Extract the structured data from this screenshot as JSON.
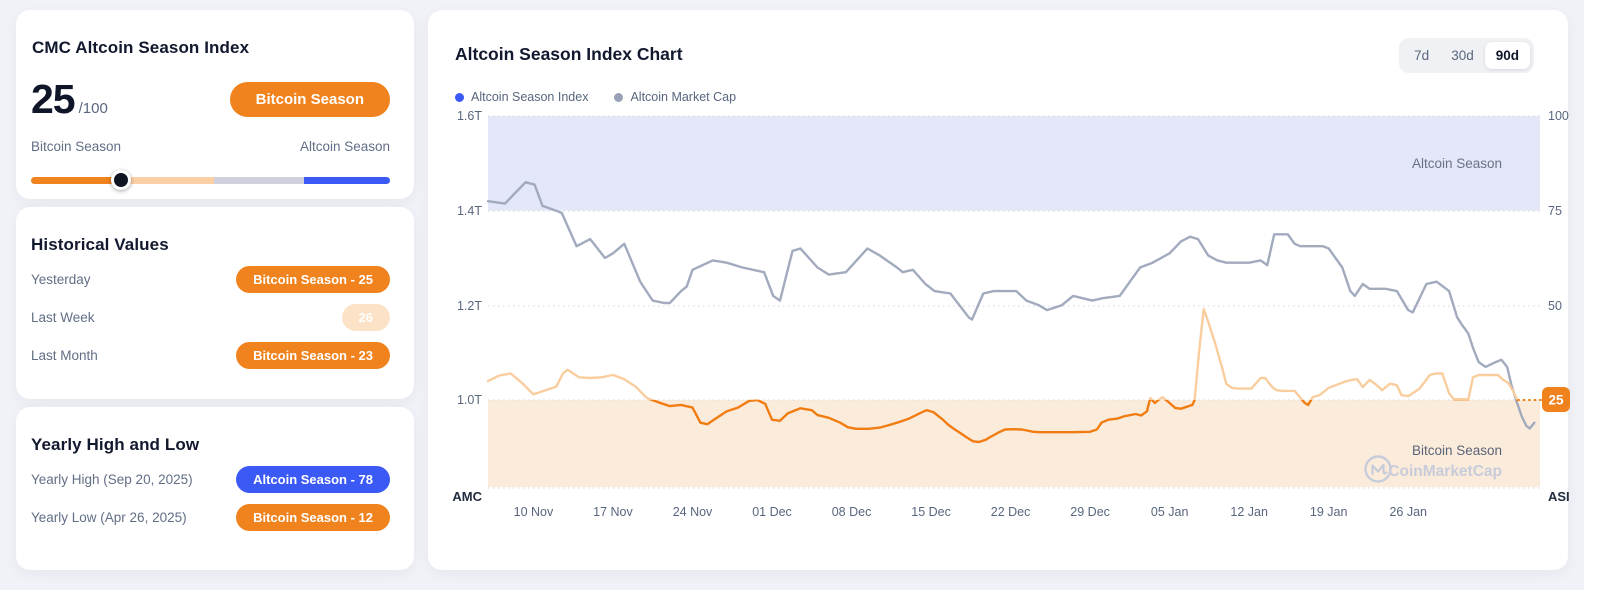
{
  "left_panel": {
    "index_card": {
      "title": "CMC Altcoin Season Index",
      "value": "25",
      "max_suffix": "/100",
      "season_badge": "Bitcoin Season",
      "scale_left": "Bitcoin Season",
      "scale_right": "Altcoin Season",
      "slider": {
        "handle_pct": 25,
        "segments": [
          {
            "name": "bitcoin-zone",
            "to_pct": 23,
            "color": "#f0831d"
          },
          {
            "name": "lower-mid-zone",
            "to_pct": 51,
            "color": "#fbd0a5"
          },
          {
            "name": "upper-mid-zone",
            "to_pct": 76,
            "color": "#cfd2dd"
          },
          {
            "name": "altcoin-zone",
            "to_pct": 100,
            "color": "#3b59f5"
          }
        ]
      }
    },
    "historical_card": {
      "title": "Historical Values",
      "rows": [
        {
          "label": "Yesterday",
          "badge": "Bitcoin Season - 25"
        },
        {
          "label": "Last Week",
          "badge": "26"
        },
        {
          "label": "Last Month",
          "badge": "Bitcoin Season - 23"
        }
      ]
    },
    "yearly_card": {
      "title": "Yearly High and Low",
      "rows": [
        {
          "label": "Yearly High (Sep 20, 2025)",
          "badge": "Altcoin Season - 78"
        },
        {
          "label": "Yearly Low (Apr 26, 2025)",
          "badge": "Bitcoin Season - 12"
        }
      ]
    }
  },
  "chart": {
    "title": "Altcoin Season Index Chart",
    "legend": [
      {
        "label": "Altcoin Season Index",
        "color": "#3b59f5"
      },
      {
        "label": "Altcoin Market Cap",
        "color": "#98a1b8"
      }
    ],
    "ranges": [
      {
        "label": "7d",
        "active": false
      },
      {
        "label": "30d",
        "active": false
      },
      {
        "label": "90d",
        "active": true
      }
    ]
  },
  "chart_data": {
    "type": "line",
    "title": "Altcoin Season Index Chart",
    "left_axis": {
      "label": "AMC",
      "ticks": [
        "1.6T",
        "1.4T",
        "1.2T",
        "1.0T"
      ],
      "range_T": [
        1.0,
        1.6
      ]
    },
    "right_axis": {
      "label": "ASI",
      "ticks": [
        100,
        75,
        50,
        25
      ],
      "range": [
        0,
        100
      ]
    },
    "x_ticks": [
      {
        "day": 4,
        "label": "10 Nov"
      },
      {
        "day": 11,
        "label": "17 Nov"
      },
      {
        "day": 18,
        "label": "24 Nov"
      },
      {
        "day": 25,
        "label": "01 Dec"
      },
      {
        "day": 32,
        "label": "08 Dec"
      },
      {
        "day": 39,
        "label": "15 Dec"
      },
      {
        "day": 46,
        "label": "22 Dec"
      },
      {
        "day": 53,
        "label": "29 Dec"
      },
      {
        "day": 60,
        "label": "05 Jan"
      },
      {
        "day": 67,
        "label": "12 Jan"
      },
      {
        "day": 74,
        "label": "19 Jan"
      },
      {
        "day": 81,
        "label": "26 Jan"
      }
    ],
    "bands": [
      {
        "name": "Altcoin Season",
        "axis": "right",
        "from": 75,
        "to": 100,
        "color": "#e4e7f8",
        "label_color": "#6a7285"
      },
      {
        "name": "Bitcoin Season",
        "axis": "right",
        "from": 2,
        "to": 25,
        "color": "#fbebdb",
        "label_color": "#5a6478"
      }
    ],
    "current_value": 25,
    "current_value_color": "#f0821e",
    "watermark": "CoinMarketCap",
    "series": [
      {
        "name": "Altcoin Market Cap",
        "axis": "left",
        "color": "#a2aabe",
        "points": [
          [
            0,
            1.42
          ],
          [
            1.5,
            1.415
          ],
          [
            2.5,
            1.44
          ],
          [
            3.3,
            1.46
          ],
          [
            4.1,
            1.455
          ],
          [
            4.8,
            1.41
          ],
          [
            6,
            1.4
          ],
          [
            6.5,
            1.395
          ],
          [
            7.8,
            1.325
          ],
          [
            9,
            1.34
          ],
          [
            10.3,
            1.3
          ],
          [
            11,
            1.31
          ],
          [
            12,
            1.33
          ],
          [
            13.4,
            1.25
          ],
          [
            14.5,
            1.21
          ],
          [
            15.5,
            1.205
          ],
          [
            16,
            1.205
          ],
          [
            17,
            1.23
          ],
          [
            17.5,
            1.24
          ],
          [
            18,
            1.275
          ],
          [
            19.8,
            1.295
          ],
          [
            21,
            1.29
          ],
          [
            22.4,
            1.28
          ],
          [
            24.3,
            1.27
          ],
          [
            25.1,
            1.22
          ],
          [
            25.7,
            1.21
          ],
          [
            26.8,
            1.315
          ],
          [
            27.5,
            1.32
          ],
          [
            29,
            1.28
          ],
          [
            30,
            1.265
          ],
          [
            31.5,
            1.27
          ],
          [
            33.4,
            1.32
          ],
          [
            34.5,
            1.305
          ],
          [
            36,
            1.28
          ],
          [
            36.5,
            1.27
          ],
          [
            37.4,
            1.275
          ],
          [
            38.5,
            1.245
          ],
          [
            39.3,
            1.23
          ],
          [
            40.7,
            1.225
          ],
          [
            42.3,
            1.175
          ],
          [
            42.6,
            1.17
          ],
          [
            43.6,
            1.225
          ],
          [
            44.5,
            1.23
          ],
          [
            46.5,
            1.23
          ],
          [
            47.4,
            1.21
          ],
          [
            48.5,
            1.2
          ],
          [
            49.2,
            1.19
          ],
          [
            50.5,
            1.2
          ],
          [
            51.5,
            1.22
          ],
          [
            53.2,
            1.21
          ],
          [
            54.1,
            1.215
          ],
          [
            55.6,
            1.22
          ],
          [
            56.5,
            1.25
          ],
          [
            57.4,
            1.28
          ],
          [
            58.5,
            1.29
          ],
          [
            60,
            1.31
          ],
          [
            61,
            1.335
          ],
          [
            61.8,
            1.345
          ],
          [
            62.5,
            1.34
          ],
          [
            63.4,
            1.305
          ],
          [
            64.2,
            1.295
          ],
          [
            65,
            1.29
          ],
          [
            67,
            1.29
          ],
          [
            68,
            1.295
          ],
          [
            68.6,
            1.285
          ],
          [
            69.2,
            1.35
          ],
          [
            70.4,
            1.35
          ],
          [
            71,
            1.33
          ],
          [
            71.5,
            1.325
          ],
          [
            73.5,
            1.325
          ],
          [
            74,
            1.32
          ],
          [
            75.2,
            1.28
          ],
          [
            75.9,
            1.23
          ],
          [
            76.3,
            1.22
          ],
          [
            77,
            1.245
          ],
          [
            77.6,
            1.235
          ],
          [
            79,
            1.235
          ],
          [
            80,
            1.23
          ],
          [
            81,
            1.19
          ],
          [
            81.4,
            1.185
          ],
          [
            82.6,
            1.245
          ],
          [
            83.5,
            1.25
          ],
          [
            84.6,
            1.23
          ],
          [
            85.3,
            1.175
          ],
          [
            85.7,
            1.16
          ],
          [
            86.3,
            1.14
          ],
          [
            86.7,
            1.11
          ],
          [
            87.2,
            1.08
          ],
          [
            87.8,
            1.07
          ],
          [
            88.7,
            1.08
          ],
          [
            89.2,
            1.085
          ],
          [
            89.7,
            1.07
          ],
          [
            90.1,
            1.03
          ],
          [
            90.5,
            1.0
          ],
          [
            91,
            0.965
          ],
          [
            91.4,
            0.945
          ],
          [
            91.7,
            0.94
          ],
          [
            92.1,
            0.952
          ]
        ]
      },
      {
        "name": "Altcoin Season Index",
        "axis": "right",
        "color_above_25": "#f9cd9e",
        "color_below_25": "#f07c12",
        "points": [
          [
            0,
            30
          ],
          [
            1,
            31.5
          ],
          [
            2,
            32
          ],
          [
            3,
            29.5
          ],
          [
            4,
            26.5
          ],
          [
            5,
            27.5
          ],
          [
            6,
            28.5
          ],
          [
            6.6,
            32
          ],
          [
            7,
            33
          ],
          [
            8,
            31
          ],
          [
            9,
            30.8
          ],
          [
            10,
            31
          ],
          [
            11,
            31.6
          ],
          [
            12,
            30.5
          ],
          [
            13,
            28.5
          ],
          [
            14,
            25.5
          ],
          [
            15,
            24.4
          ],
          [
            16,
            23.4
          ],
          [
            17,
            23.7
          ],
          [
            18,
            23
          ],
          [
            18.7,
            19
          ],
          [
            19.3,
            18.6
          ],
          [
            20,
            20
          ],
          [
            21,
            22
          ],
          [
            22,
            23
          ],
          [
            23,
            24.8
          ],
          [
            23.7,
            25
          ],
          [
            24.4,
            24
          ],
          [
            25,
            19.8
          ],
          [
            25.7,
            19.5
          ],
          [
            26.4,
            21.5
          ],
          [
            27.5,
            22.8
          ],
          [
            28.5,
            22.3
          ],
          [
            29,
            21
          ],
          [
            30,
            20.3
          ],
          [
            31,
            19
          ],
          [
            31.7,
            17.8
          ],
          [
            32.4,
            17.4
          ],
          [
            33.5,
            17.4
          ],
          [
            34.5,
            17.7
          ],
          [
            35.2,
            18.3
          ],
          [
            36,
            19
          ],
          [
            37,
            20
          ],
          [
            38,
            21.5
          ],
          [
            38.6,
            22.3
          ],
          [
            39.2,
            21.8
          ],
          [
            40,
            19.9
          ],
          [
            40.5,
            18.5
          ],
          [
            41,
            17.4
          ],
          [
            41.6,
            16.2
          ],
          [
            42.2,
            15
          ],
          [
            42.7,
            14.1
          ],
          [
            43.2,
            13.9
          ],
          [
            43.8,
            14.5
          ],
          [
            44.3,
            15.4
          ],
          [
            45,
            16.5
          ],
          [
            45.5,
            17.2
          ],
          [
            46.2,
            17.3
          ],
          [
            47,
            17.2
          ],
          [
            48,
            16.6
          ],
          [
            48.6,
            16.5
          ],
          [
            50,
            16.5
          ],
          [
            51.5,
            16.5
          ],
          [
            53,
            16.6
          ],
          [
            53.6,
            17.2
          ],
          [
            54,
            19
          ],
          [
            54.6,
            19.8
          ],
          [
            55.4,
            20.1
          ],
          [
            56,
            20.7
          ],
          [
            57,
            21.3
          ],
          [
            57.5,
            20.9
          ],
          [
            58,
            22
          ],
          [
            58.3,
            25.5
          ],
          [
            58.7,
            24.2
          ],
          [
            59,
            25
          ],
          [
            59.4,
            25.7
          ],
          [
            60,
            24.2
          ],
          [
            60.5,
            22.9
          ],
          [
            61,
            22.7
          ],
          [
            61.5,
            23.2
          ],
          [
            62,
            23.7
          ],
          [
            62.2,
            25
          ],
          [
            62.6,
            38
          ],
          [
            63,
            49
          ],
          [
            63.4,
            45.6
          ],
          [
            64,
            40
          ],
          [
            64.6,
            33.7
          ],
          [
            65,
            29.2
          ],
          [
            65.5,
            28.2
          ],
          [
            66,
            28
          ],
          [
            67.2,
            28
          ],
          [
            68,
            30.8
          ],
          [
            68.4,
            30.8
          ],
          [
            69,
            28.5
          ],
          [
            69.4,
            27.6
          ],
          [
            70,
            27.4
          ],
          [
            71,
            27.4
          ],
          [
            71.9,
            24.2
          ],
          [
            72.2,
            23.7
          ],
          [
            72.6,
            25.8
          ],
          [
            73.2,
            26.3
          ],
          [
            74,
            28.2
          ],
          [
            74.7,
            29
          ],
          [
            75.4,
            29.8
          ],
          [
            76,
            30.3
          ],
          [
            76.5,
            30.5
          ],
          [
            77,
            28.4
          ],
          [
            77.6,
            30.3
          ],
          [
            78.2,
            29
          ],
          [
            78.7,
            27.6
          ],
          [
            79.4,
            29.3
          ],
          [
            80,
            28.9
          ],
          [
            80.4,
            26.3
          ],
          [
            81,
            26
          ],
          [
            82,
            28
          ],
          [
            82.9,
            31.6
          ],
          [
            83.4,
            32
          ],
          [
            84,
            32
          ],
          [
            84.6,
            26.8
          ],
          [
            85,
            25.2
          ],
          [
            86.3,
            25.2
          ],
          [
            86.7,
            31
          ],
          [
            87.2,
            31.6
          ],
          [
            88.9,
            31.6
          ],
          [
            89.3,
            30.5
          ],
          [
            89.8,
            29.5
          ],
          [
            90.2,
            27.6
          ],
          [
            90.6,
            25
          ]
        ]
      }
    ],
    "layout_hint": {
      "days_span": 92.6,
      "grid": "dotted-horizontal",
      "legend_position": "top-left"
    }
  }
}
